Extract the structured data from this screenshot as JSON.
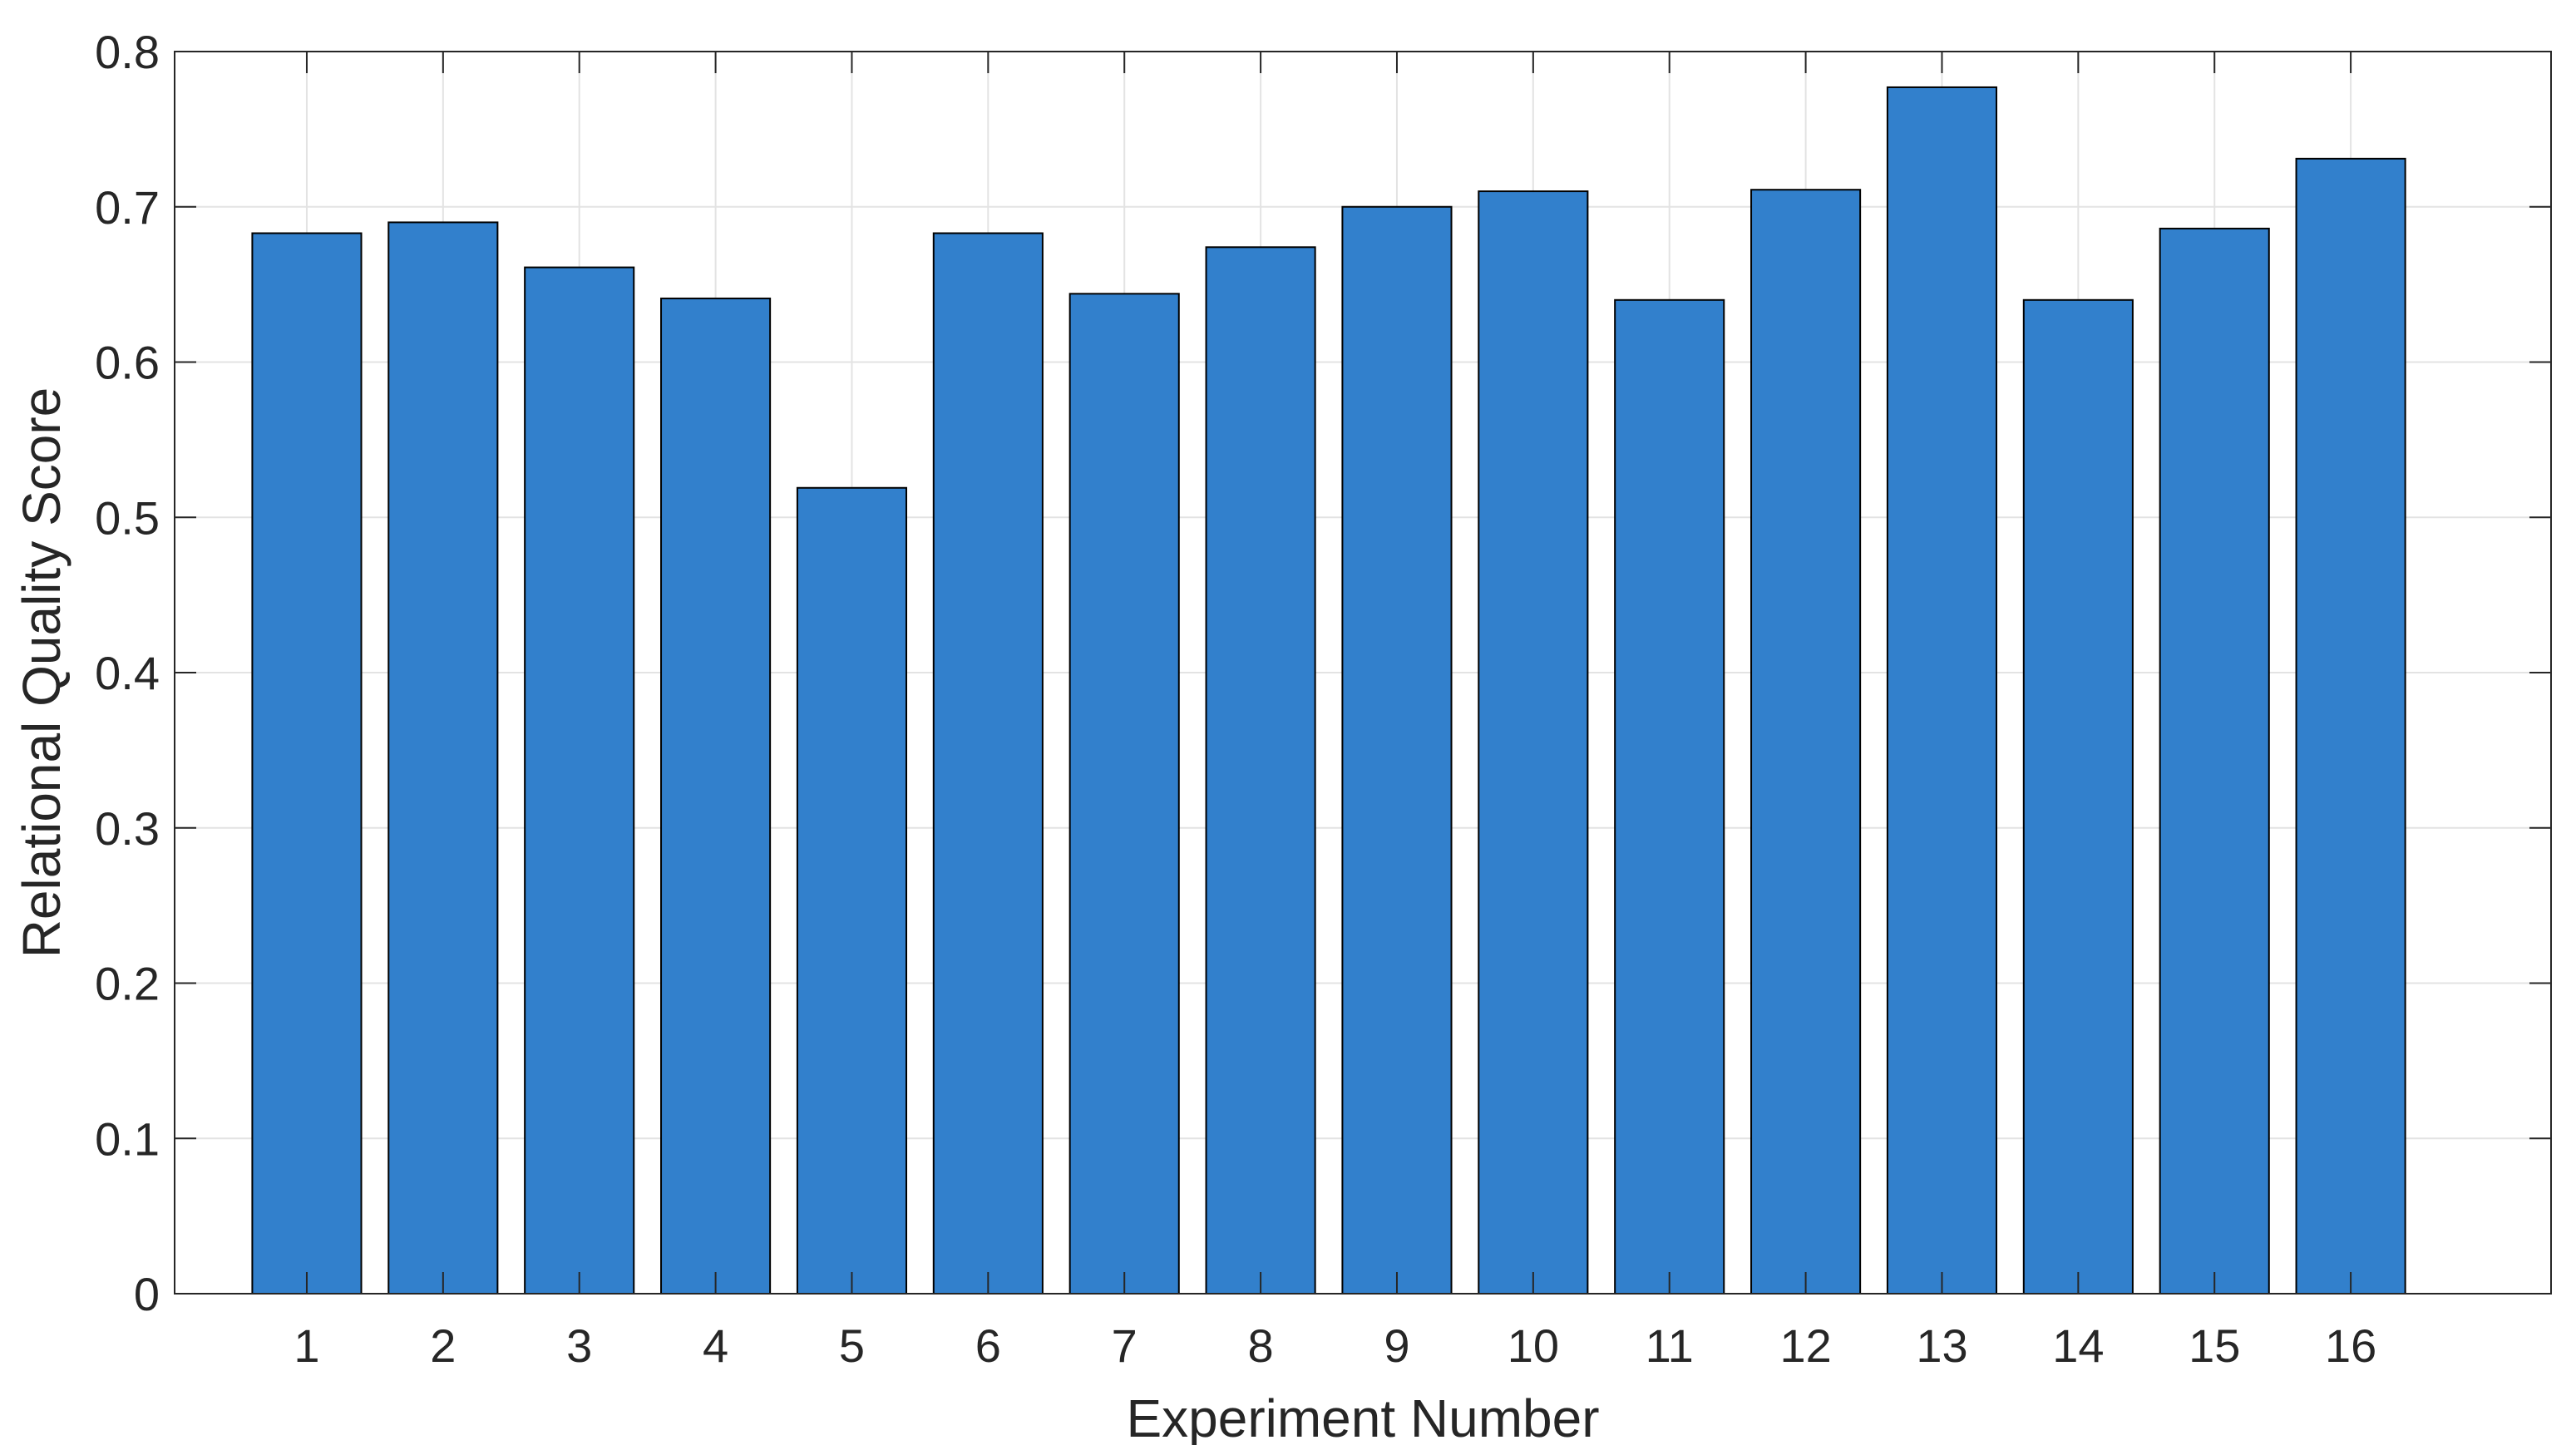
{
  "chart_data": {
    "type": "bar",
    "title": "",
    "xlabel": "Experiment Number",
    "ylabel": "Relational Quality Score",
    "categories": [
      "1",
      "2",
      "3",
      "4",
      "5",
      "6",
      "7",
      "8",
      "9",
      "10",
      "11",
      "12",
      "13",
      "14",
      "15",
      "16"
    ],
    "values": [
      0.683,
      0.69,
      0.661,
      0.641,
      0.519,
      0.683,
      0.644,
      0.674,
      0.7,
      0.71,
      0.64,
      0.711,
      0.777,
      0.64,
      0.686,
      0.731
    ],
    "ylim": [
      0,
      0.8
    ],
    "yticks": [
      "0",
      "0.1",
      "0.2",
      "0.3",
      "0.4",
      "0.5",
      "0.6",
      "0.7",
      "0.8"
    ],
    "grid": true,
    "legend": "none",
    "colors": {
      "bar_fill": "#3280cc",
      "bar_edge": "#000000",
      "grid": "#e3e3e3",
      "axis": "#262626"
    }
  }
}
